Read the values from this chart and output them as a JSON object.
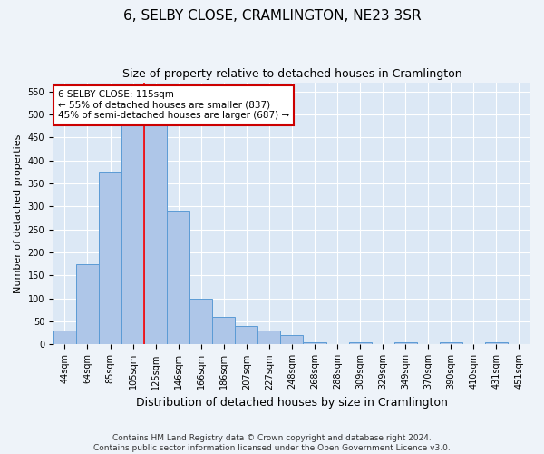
{
  "title": "6, SELBY CLOSE, CRAMLINGTON, NE23 3SR",
  "subtitle": "Size of property relative to detached houses in Cramlington",
  "xlabel": "Distribution of detached houses by size in Cramlington",
  "ylabel": "Number of detached properties",
  "footnote1": "Contains HM Land Registry data © Crown copyright and database right 2024.",
  "footnote2": "Contains public sector information licensed under the Open Government Licence v3.0.",
  "categories": [
    "44sqm",
    "64sqm",
    "85sqm",
    "105sqm",
    "125sqm",
    "146sqm",
    "166sqm",
    "186sqm",
    "207sqm",
    "227sqm",
    "248sqm",
    "268sqm",
    "288sqm",
    "309sqm",
    "329sqm",
    "349sqm",
    "370sqm",
    "390sqm",
    "410sqm",
    "431sqm",
    "451sqm"
  ],
  "values": [
    30,
    175,
    375,
    510,
    510,
    290,
    100,
    60,
    40,
    30,
    20,
    5,
    0,
    5,
    0,
    5,
    0,
    5,
    0,
    5,
    0
  ],
  "bar_color": "#aec6e8",
  "bar_edge_color": "#5b9bd5",
  "annotation_title": "6 SELBY CLOSE: 115sqm",
  "annotation_line1": "← 55% of detached houses are smaller (837)",
  "annotation_line2": "45% of semi-detached houses are larger (687) →",
  "annotation_box_color": "#ffffff",
  "annotation_box_edge": "#cc0000",
  "red_line_x": 3.5,
  "ylim": [
    0,
    570
  ],
  "yticks": [
    0,
    50,
    100,
    150,
    200,
    250,
    300,
    350,
    400,
    450,
    500,
    550
  ],
  "title_fontsize": 11,
  "subtitle_fontsize": 9,
  "xlabel_fontsize": 9,
  "ylabel_fontsize": 8,
  "tick_fontsize": 7,
  "annotation_fontsize": 7.5,
  "footnote_fontsize": 6.5,
  "fig_bg_color": "#eef3f9",
  "bg_color": "#dce8f5",
  "grid_color": "#ffffff"
}
